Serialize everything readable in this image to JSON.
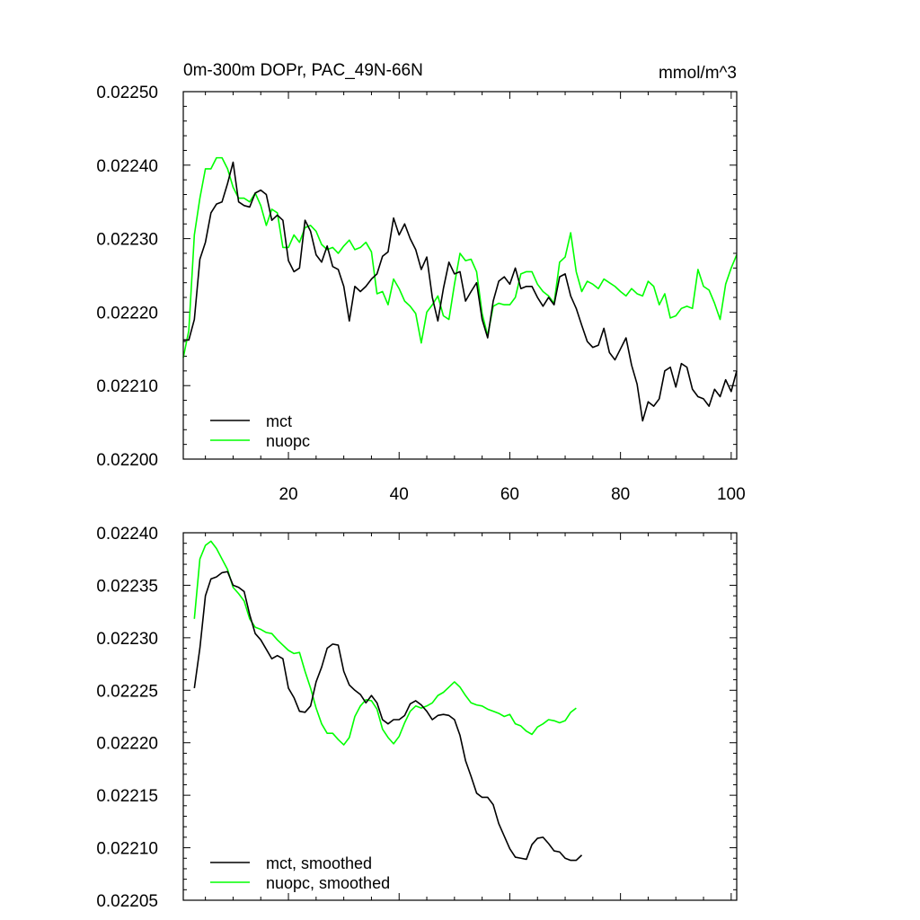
{
  "figure": {
    "background": "#ffffff"
  },
  "chart_data": [
    {
      "type": "line",
      "title": "0m-300m DOPr, PAC_49N-66N",
      "units": "mmol/m^3",
      "xlim": [
        1,
        101
      ],
      "ylim": [
        0.022,
        0.0225
      ],
      "xticks": [
        20,
        40,
        60,
        80,
        100
      ],
      "yticks": [
        0.022,
        0.0221,
        0.0222,
        0.0223,
        0.0224,
        0.0225
      ],
      "ytick_labels": [
        "0.02200",
        "0.02210",
        "0.02220",
        "0.02230",
        "0.02240",
        "0.02250"
      ],
      "legend_position": "bottom-left",
      "x_start": 1,
      "series": [
        {
          "name": "mct",
          "color": "#000000",
          "values": [
            0.022162,
            0.022162,
            0.02219,
            0.022272,
            0.022295,
            0.022335,
            0.022347,
            0.02235,
            0.022375,
            0.022404,
            0.02235,
            0.022345,
            0.022343,
            0.022362,
            0.022366,
            0.02236,
            0.022325,
            0.022332,
            0.022325,
            0.02227,
            0.022255,
            0.02226,
            0.022325,
            0.02231,
            0.022278,
            0.022268,
            0.02229,
            0.022262,
            0.022258,
            0.022235,
            0.022188,
            0.022235,
            0.022228,
            0.022235,
            0.022245,
            0.022252,
            0.022276,
            0.022282,
            0.022328,
            0.022305,
            0.02232,
            0.0223,
            0.022285,
            0.022258,
            0.022275,
            0.02222,
            0.022188,
            0.022232,
            0.022268,
            0.022252,
            0.022255,
            0.022215,
            0.022228,
            0.02224,
            0.02219,
            0.022165,
            0.022215,
            0.022242,
            0.022248,
            0.022238,
            0.02226,
            0.022232,
            0.022235,
            0.022235,
            0.02222,
            0.022208,
            0.02222,
            0.02221,
            0.022248,
            0.022252,
            0.022222,
            0.022205,
            0.022182,
            0.02216,
            0.022152,
            0.022155,
            0.022178,
            0.022145,
            0.022135,
            0.02215,
            0.022165,
            0.022128,
            0.022102,
            0.022052,
            0.022078,
            0.022072,
            0.022082,
            0.02212,
            0.022125,
            0.022098,
            0.02213,
            0.022125,
            0.022095,
            0.022085,
            0.022082,
            0.022072,
            0.022095,
            0.022085,
            0.022108,
            0.022092,
            0.02212
          ]
        },
        {
          "name": "nuopc",
          "color": "#00ff00",
          "values": [
            0.022138,
            0.022175,
            0.022305,
            0.022355,
            0.022395,
            0.022395,
            0.02241,
            0.02241,
            0.022395,
            0.02237,
            0.022355,
            0.022355,
            0.02235,
            0.022362,
            0.022345,
            0.022318,
            0.02234,
            0.022335,
            0.022288,
            0.022288,
            0.022305,
            0.022295,
            0.022315,
            0.022318,
            0.02231,
            0.022292,
            0.022285,
            0.022288,
            0.02228,
            0.02229,
            0.022298,
            0.022285,
            0.022288,
            0.022295,
            0.022282,
            0.022225,
            0.022228,
            0.02221,
            0.022245,
            0.022232,
            0.022215,
            0.022208,
            0.022198,
            0.022158,
            0.0222,
            0.02221,
            0.022222,
            0.022195,
            0.02219,
            0.022238,
            0.02228,
            0.02227,
            0.022272,
            0.022255,
            0.022198,
            0.022168,
            0.022208,
            0.022212,
            0.02221,
            0.02221,
            0.02222,
            0.022252,
            0.022255,
            0.022255,
            0.022238,
            0.022228,
            0.022222,
            0.022212,
            0.022268,
            0.022275,
            0.022308,
            0.022255,
            0.022228,
            0.022242,
            0.022238,
            0.022232,
            0.022245,
            0.02224,
            0.022235,
            0.022228,
            0.022222,
            0.022232,
            0.022225,
            0.022222,
            0.022242,
            0.022235,
            0.02221,
            0.022225,
            0.022192,
            0.022195,
            0.022205,
            0.022208,
            0.022205,
            0.022258,
            0.022235,
            0.02223,
            0.022212,
            0.02219,
            0.022238,
            0.02226,
            0.022278
          ]
        }
      ]
    },
    {
      "type": "line",
      "title": "",
      "xlim": [
        1,
        101
      ],
      "ylim": [
        0.02205,
        0.0224
      ],
      "xticks": [
        20,
        40,
        60,
        80,
        100
      ],
      "yticks": [
        0.02205,
        0.0221,
        0.02215,
        0.0222,
        0.02225,
        0.0223,
        0.02235,
        0.0224
      ],
      "ytick_labels": [
        "0.02205",
        "0.02210",
        "0.02215",
        "0.02220",
        "0.02225",
        "0.02230",
        "0.02235",
        "0.02240"
      ],
      "legend_position": "bottom-left",
      "x_start": 3,
      "series": [
        {
          "name": "mct, smoothed",
          "color": "#000000",
          "values": [
            0.022252,
            0.02229,
            0.02234,
            0.022356,
            0.022358,
            0.022362,
            0.022363,
            0.02235,
            0.022348,
            0.022344,
            0.022322,
            0.022304,
            0.022298,
            0.022289,
            0.02228,
            0.022283,
            0.02228,
            0.022252,
            0.022243,
            0.02223,
            0.022229,
            0.022235,
            0.022258,
            0.022272,
            0.02229,
            0.022294,
            0.022293,
            0.022268,
            0.022255,
            0.02225,
            0.022246,
            0.022238,
            0.022245,
            0.022238,
            0.022222,
            0.022218,
            0.022222,
            0.022222,
            0.022226,
            0.022237,
            0.02224,
            0.022236,
            0.02223,
            0.022222,
            0.022226,
            0.022227,
            0.022226,
            0.022222,
            0.022207,
            0.022183,
            0.022168,
            0.022152,
            0.022148,
            0.022148,
            0.022141,
            0.022123,
            0.022111,
            0.022099,
            0.022091,
            0.02209,
            0.022089,
            0.022103,
            0.022109,
            0.02211,
            0.022104,
            0.022097,
            0.022096,
            0.02209,
            0.022088,
            0.022088,
            0.022093
          ]
        },
        {
          "name": "nuopc, smoothed",
          "color": "#00ff00",
          "values": [
            0.022318,
            0.022375,
            0.022388,
            0.022392,
            0.022385,
            0.022375,
            0.022365,
            0.022348,
            0.022342,
            0.022335,
            0.022318,
            0.02231,
            0.022308,
            0.022305,
            0.022304,
            0.022298,
            0.022293,
            0.022288,
            0.022285,
            0.022286,
            0.022268,
            0.022252,
            0.022233,
            0.022218,
            0.022209,
            0.022209,
            0.022203,
            0.022198,
            0.022205,
            0.022225,
            0.022235,
            0.022241,
            0.02224,
            0.022232,
            0.022213,
            0.022205,
            0.022199,
            0.022206,
            0.022219,
            0.02223,
            0.022235,
            0.022233,
            0.022235,
            0.022238,
            0.022245,
            0.022248,
            0.022253,
            0.022258,
            0.022253,
            0.022245,
            0.022238,
            0.022236,
            0.022235,
            0.022232,
            0.02223,
            0.022228,
            0.022225,
            0.022227,
            0.022218,
            0.022216,
            0.022211,
            0.022208,
            0.022215,
            0.022218,
            0.022222,
            0.022221,
            0.022219,
            0.022221,
            0.022229,
            0.022233
          ]
        }
      ]
    }
  ]
}
